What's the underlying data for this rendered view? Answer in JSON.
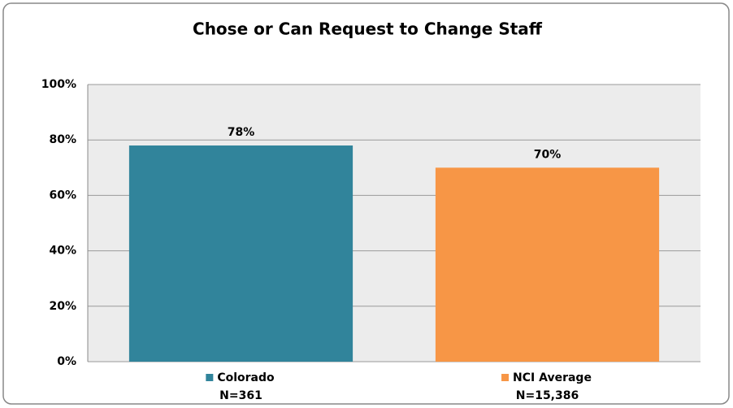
{
  "chart_data": {
    "type": "bar",
    "title": "Chose or Can Request to Change Staff",
    "categories": [
      "Colorado",
      "NCI Average"
    ],
    "category_notes": [
      "N=361",
      "N=15,386"
    ],
    "values": [
      78,
      70
    ],
    "value_labels": [
      "78%",
      "70%"
    ],
    "colors": [
      "#31849b",
      "#f79646"
    ],
    "ylim": [
      0,
      100
    ],
    "yticks": [
      {
        "value": 0,
        "label": "0%"
      },
      {
        "value": 20,
        "label": "20%"
      },
      {
        "value": 40,
        "label": "40%"
      },
      {
        "value": 60,
        "label": "60%"
      },
      {
        "value": 80,
        "label": "80%"
      },
      {
        "value": 100,
        "label": "100%"
      }
    ],
    "grid": true
  }
}
